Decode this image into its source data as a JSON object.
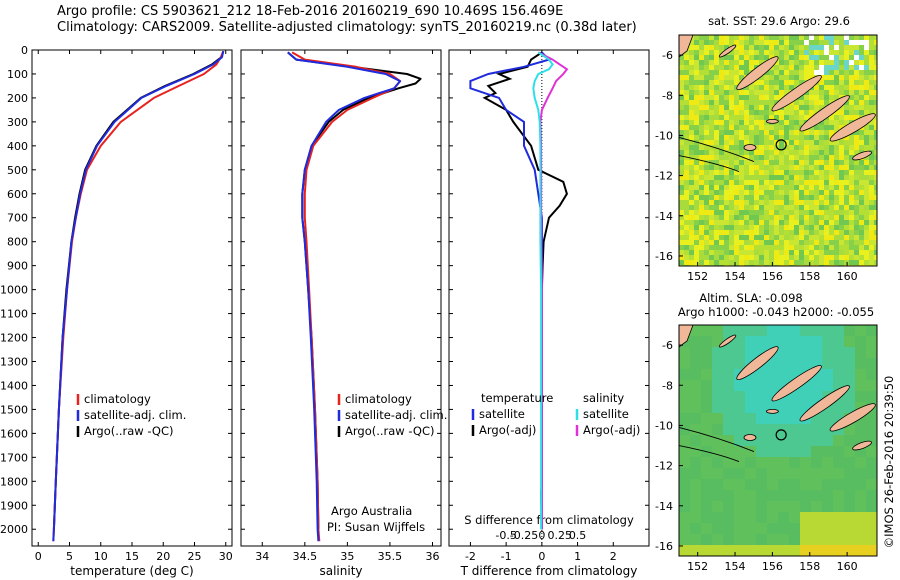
{
  "header": {
    "line1": "Argo profile: CS 5903621_212 18-Feb-2016 20160219_690 10.469S 156.469E",
    "line2": "Climatology: CARS2009. Satellite-adjusted climatology: synTS_20160219.nc (0.38d later)"
  },
  "colors": {
    "climatology": "#e8231f",
    "satellite": "#1f2bdc",
    "argo": "#000000",
    "sal_satellite": "#2de0e8",
    "sal_argo": "#e030d8"
  },
  "chart_data": [
    {
      "type": "line",
      "id": "temperature",
      "xlabel": "temperature (deg C)",
      "ylabel": "",
      "xlim": [
        -1,
        31
      ],
      "ylim": [
        2070,
        0
      ],
      "xticks": [
        0,
        5,
        10,
        15,
        20,
        25,
        30
      ],
      "xtick_labels": [
        "0",
        "5",
        "10",
        "15",
        "20",
        "25",
        "30"
      ],
      "yticks": [
        0,
        100,
        200,
        300,
        400,
        500,
        600,
        700,
        800,
        900,
        1000,
        1100,
        1200,
        1300,
        1400,
        1500,
        1600,
        1700,
        1800,
        1900,
        2000
      ],
      "ytick_labels": [
        "0",
        "100",
        "200",
        "300",
        "400",
        "500",
        "600",
        "700",
        "800",
        "900",
        "1000",
        "1100",
        "1200",
        "1300",
        "1400",
        "1500",
        "1600",
        "1700",
        "1800",
        "1900",
        "2000"
      ],
      "legend": [
        "climatology",
        "satellite-adj. clim.",
        "Argo(..raw -QC)"
      ],
      "series": [
        {
          "name": "climatology",
          "depth": [
            5,
            30,
            60,
            100,
            150,
            200,
            300,
            400,
            500,
            600,
            700,
            800,
            1000,
            1200,
            1500,
            1800,
            2000,
            2050
          ],
          "values": [
            29.6,
            29.2,
            28.5,
            26.5,
            22.5,
            18.5,
            13.2,
            10.0,
            7.8,
            6.8,
            6.0,
            5.4,
            4.6,
            4.0,
            3.3,
            2.8,
            2.5,
            2.4
          ]
        },
        {
          "name": "satellite-adj. clim.",
          "depth": [
            5,
            30,
            60,
            100,
            150,
            200,
            300,
            400,
            500,
            600,
            700,
            800,
            1000,
            1200,
            1500,
            1800,
            2000,
            2050
          ],
          "values": [
            29.6,
            29.4,
            28.0,
            25.0,
            20.5,
            16.5,
            12.2,
            9.4,
            7.6,
            6.7,
            6.0,
            5.3,
            4.6,
            3.9,
            3.3,
            2.8,
            2.5,
            2.4
          ]
        },
        {
          "name": "Argo(..raw -QC)",
          "depth": [
            5,
            30,
            60,
            100,
            150,
            200,
            300,
            400,
            500,
            600,
            700,
            800,
            1000,
            1200,
            1500,
            1800,
            2000
          ],
          "values": [
            29.6,
            29.3,
            27.8,
            24.8,
            20.3,
            16.4,
            12.0,
            9.3,
            7.5,
            6.6,
            5.9,
            5.3,
            4.5,
            3.9,
            3.3,
            2.8,
            2.5
          ]
        }
      ]
    },
    {
      "type": "line",
      "id": "salinity",
      "xlabel": "salinity",
      "xlim": [
        33.75,
        36.1
      ],
      "ylim": [
        2070,
        0
      ],
      "xticks": [
        34,
        34.5,
        35,
        35.5,
        36
      ],
      "xtick_labels": [
        "34",
        "34.5",
        "35",
        "35.5",
        "36"
      ],
      "legend": [
        "climatology",
        "satellite-adj. clim.",
        "Argo(..raw -QC)"
      ],
      "credit": [
        "Argo Australia",
        "PI: Susan Wijffels"
      ],
      "series": [
        {
          "name": "climatology",
          "depth": [
            10,
            40,
            70,
            100,
            130,
            160,
            200,
            250,
            300,
            400,
            500,
            600,
            700,
            800,
            1000,
            1200,
            1500,
            1800,
            2000,
            2050
          ],
          "values": [
            34.35,
            34.5,
            35.1,
            35.5,
            35.62,
            35.55,
            35.3,
            35.0,
            34.82,
            34.6,
            34.52,
            34.5,
            34.5,
            34.52,
            34.55,
            34.58,
            34.62,
            34.65,
            34.66,
            34.67
          ]
        },
        {
          "name": "satellite-adj. clim.",
          "depth": [
            10,
            40,
            70,
            100,
            130,
            160,
            200,
            250,
            300,
            400,
            500,
            600,
            700,
            800,
            1000,
            1200,
            1500,
            1800,
            2000,
            2050
          ],
          "values": [
            34.3,
            34.4,
            35.0,
            35.45,
            35.62,
            35.55,
            35.2,
            34.9,
            34.75,
            34.58,
            34.5,
            34.47,
            34.47,
            34.5,
            34.54,
            34.57,
            34.61,
            34.64,
            34.65,
            34.66
          ]
        },
        {
          "name": "Argo(..raw -QC)",
          "depth": [
            10,
            40,
            70,
            100,
            120,
            140,
            160,
            200,
            250,
            300,
            400,
            500,
            600,
            700,
            800,
            1000,
            1200,
            1500,
            1800,
            2000
          ],
          "values": [
            34.3,
            34.4,
            35.05,
            35.7,
            35.86,
            35.8,
            35.6,
            35.25,
            34.95,
            34.78,
            34.58,
            34.5,
            34.47,
            34.47,
            34.5,
            34.54,
            34.58,
            34.62,
            34.65,
            34.66
          ]
        }
      ]
    },
    {
      "type": "line",
      "id": "difference",
      "xlabel": "T difference from climatology",
      "xlabel2": "S difference from climatology",
      "xlim": [
        -2.6,
        3.0
      ],
      "ylim": [
        2070,
        0
      ],
      "xticks": [
        -2,
        -1,
        0,
        1,
        2
      ],
      "xtick_labels": [
        "-2",
        "-1",
        "0",
        "1",
        "2"
      ],
      "xticks_s": [
        -0.5,
        -0.25,
        0,
        0.25,
        0.5
      ],
      "xtick_labels_s": [
        "-0.5",
        "-0.25",
        "0",
        "0.25",
        "0.5"
      ],
      "legend_titles": [
        "temperature",
        "salinity"
      ],
      "legend_temp": [
        "satellite",
        "Argo(-adj)"
      ],
      "legend_sal": [
        "satellite",
        "Argo(-adj)"
      ],
      "series": [
        {
          "name": "T satellite",
          "depth": [
            10,
            40,
            70,
            100,
            130,
            160,
            200,
            250,
            300,
            400,
            500,
            600,
            700,
            800,
            1000,
            1200,
            1500,
            1800,
            2000
          ],
          "values": [
            0.0,
            0.2,
            -0.5,
            -1.5,
            -2.0,
            -2.0,
            -1.2,
            -1.0,
            -0.5,
            -0.5,
            -0.2,
            -0.1,
            0.0,
            0.0,
            0.0,
            0.0,
            0.0,
            0.0,
            0.0
          ]
        },
        {
          "name": "T Argo(-adj)",
          "depth": [
            10,
            40,
            70,
            100,
            120,
            150,
            180,
            200,
            250,
            300,
            400,
            500,
            550,
            600,
            650,
            700,
            800,
            900,
            1000,
            1100,
            1800,
            1850,
            2000
          ],
          "values": [
            0.0,
            -0.3,
            -0.4,
            -1.2,
            -0.9,
            -1.5,
            -1.3,
            -1.6,
            -1.0,
            -0.8,
            -0.3,
            -0.1,
            0.6,
            0.7,
            0.5,
            0.2,
            0.05,
            0.02,
            0.0,
            0.0,
            0.0,
            -0.02,
            0.0
          ]
        },
        {
          "name": "S satellite",
          "depth": [
            10,
            40,
            60,
            80,
            100,
            130,
            160,
            200,
            250,
            300,
            400,
            500,
            600,
            700,
            800,
            1000,
            1200,
            1500,
            1800,
            2000
          ],
          "values": [
            -0.05,
            0.1,
            0.15,
            0.1,
            -0.05,
            -0.1,
            -0.12,
            -0.1,
            -0.05,
            -0.03,
            -0.02,
            -0.02,
            -0.02,
            -0.02,
            -0.02,
            -0.01,
            -0.01,
            -0.01,
            -0.01,
            -0.01
          ]
        },
        {
          "name": "S Argo(-adj)",
          "depth": [
            10,
            40,
            60,
            80,
            100,
            130,
            160,
            200,
            250,
            300,
            400,
            500,
            600,
            700,
            800,
            1000,
            1200,
            1500,
            1800,
            2000
          ],
          "values": [
            -0.05,
            0.15,
            0.25,
            0.35,
            0.3,
            0.2,
            0.15,
            0.08,
            0.0,
            -0.02,
            -0.01,
            -0.01,
            -0.01,
            -0.01,
            -0.01,
            0.0,
            0.0,
            0.0,
            0.0,
            0.0
          ]
        }
      ]
    },
    {
      "type": "heatmap",
      "id": "sst_map",
      "title": "sat. SST: 29.6  Argo: 29.6",
      "xticks": [
        152,
        154,
        156,
        158,
        160
      ],
      "xtick_labels": [
        "152",
        "154",
        "156",
        "158",
        "160"
      ],
      "yticks": [
        -6,
        -8,
        -10,
        -12,
        -14,
        -16
      ],
      "ytick_labels": [
        "-6",
        "-8",
        "-10",
        "-12",
        "-14",
        "-16"
      ],
      "xlim": [
        151.0,
        161.6
      ],
      "ylim": [
        -16.5,
        -5.0
      ],
      "argo_position": [
        156.469,
        -10.469
      ]
    },
    {
      "type": "heatmap",
      "id": "sla_map",
      "title": "Altim. SLA: -0.098",
      "subtitle": "Argo h1000: -0.043  h2000: -0.055",
      "xticks": [
        152,
        154,
        156,
        158,
        160
      ],
      "xtick_labels": [
        "152",
        "154",
        "156",
        "158",
        "160"
      ],
      "yticks": [
        -6,
        -8,
        -10,
        -12,
        -14,
        -16
      ],
      "ytick_labels": [
        "-6",
        "-8",
        "-10",
        "-12",
        "-14",
        "-16"
      ],
      "xlim": [
        151.0,
        161.6
      ],
      "ylim": [
        -16.5,
        -5.0
      ],
      "argo_position": [
        156.469,
        -10.469
      ]
    }
  ],
  "footer": {
    "stamp": "©IMOS 26-Feb-2016 20:39:50"
  }
}
